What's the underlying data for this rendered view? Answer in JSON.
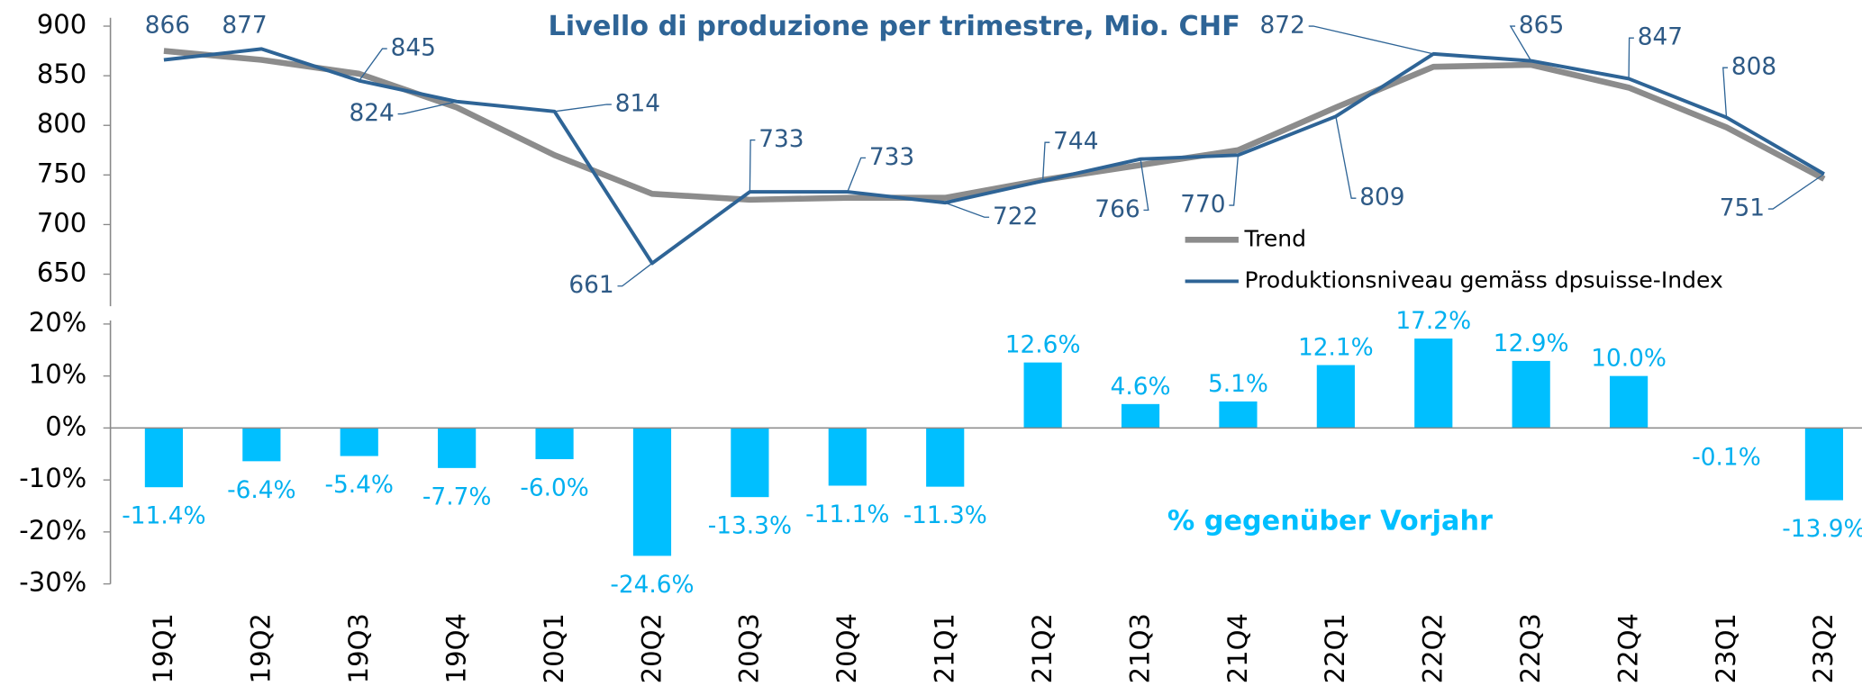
{
  "chart_data": [
    {
      "type": "line",
      "title": "Livello di produzione per trimestre, Mio. CHF",
      "series": [
        {
          "name": "Trend",
          "color": "#8c8c8c",
          "values": [
            875,
            866,
            852,
            818,
            770,
            731,
            725,
            727,
            727,
            745,
            760,
            775,
            818,
            859,
            861,
            838,
            798,
            746
          ]
        },
        {
          "name": "Produktionsniveau gemäss dpsuisse-Index",
          "color": "#2e6496",
          "values": [
            866,
            877,
            845,
            824,
            814,
            661,
            733,
            733,
            722,
            744,
            766,
            770,
            809,
            872,
            865,
            847,
            808,
            751
          ],
          "data_labels": true
        }
      ],
      "ylim": [
        620,
        900
      ],
      "yticks": [
        650,
        700,
        750,
        800,
        850,
        900
      ],
      "legend": "lower right"
    },
    {
      "type": "bar",
      "title": "% gegenüber Vorjahr",
      "categories": [
        "19Q1",
        "19Q2",
        "19Q3",
        "19Q4",
        "20Q1",
        "20Q2",
        "20Q3",
        "20Q4",
        "21Q1",
        "21Q2",
        "21Q3",
        "21Q4",
        "22Q1",
        "22Q2",
        "22Q3",
        "22Q4",
        "23Q1",
        "23Q2"
      ],
      "values": [
        -11.4,
        -6.4,
        -5.4,
        -7.7,
        -6.0,
        -24.6,
        -13.3,
        -11.1,
        -11.3,
        12.6,
        4.6,
        5.1,
        12.1,
        17.2,
        12.9,
        10.0,
        -0.1,
        -13.9
      ],
      "value_labels": [
        "-11.4%",
        "-6.4%",
        "-5.4%",
        "-7.7%",
        "-6.0%",
        "-24.6%",
        "-13.3%",
        "-11.1%",
        "-11.3%",
        "12.6%",
        "4.6%",
        "5.1%",
        "12.1%",
        "17.2%",
        "12.9%",
        "10.0%",
        "-0.1%",
        "-13.9%"
      ],
      "color": "#00bfff",
      "ylim": [
        -30,
        20
      ],
      "yticks": [
        {
          "value": -30,
          "label": "-30%"
        },
        {
          "value": -20,
          "label": "-20%"
        },
        {
          "value": -10,
          "label": "-10%"
        },
        {
          "value": 0,
          "label": "0%"
        },
        {
          "value": 10,
          "label": "10%"
        },
        {
          "value": 20,
          "label": "20%"
        }
      ]
    }
  ]
}
